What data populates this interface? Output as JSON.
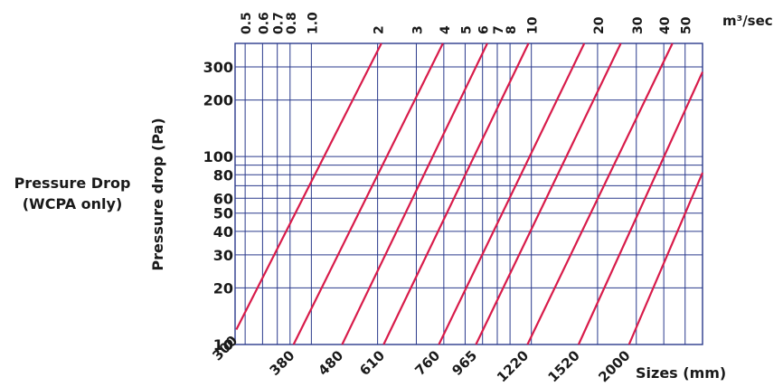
{
  "side_label": {
    "line1": "Pressure Drop",
    "line2": "(WCPA only)"
  },
  "chart_data": {
    "type": "line",
    "title": "",
    "ylabel": "Pressure drop (Pa)",
    "xlabel_top": "m³/sec",
    "xlabel_bottom": "Sizes (mm)",
    "x_scale": "log",
    "y_scale": "log",
    "xlim": [
      0.45,
      60
    ],
    "ylim": [
      10,
      400
    ],
    "grid": true,
    "colors": {
      "grid": "#2a3a8c",
      "series": "#d81b4a",
      "text": "#1a1a1a"
    },
    "top_ticks": [
      {
        "label": "0.5",
        "value": 0.5
      },
      {
        "label": "0.6",
        "value": 0.6
      },
      {
        "label": "0.7",
        "value": 0.7
      },
      {
        "label": "0.8",
        "value": 0.8
      },
      {
        "label": "1.0",
        "value": 1.0
      },
      {
        "label": "2",
        "value": 2
      },
      {
        "label": "3",
        "value": 3
      },
      {
        "label": "4",
        "value": 4
      },
      {
        "label": "5",
        "value": 5
      },
      {
        "label": "6",
        "value": 6
      },
      {
        "label": "7",
        "value": 7
      },
      {
        "label": "8",
        "value": 8
      },
      {
        "label": "10",
        "value": 10
      },
      {
        "label": "20",
        "value": 20
      },
      {
        "label": "30",
        "value": 30
      },
      {
        "label": "40",
        "value": 40
      },
      {
        "label": "50",
        "value": 50
      }
    ],
    "y_ticks": [
      {
        "label": "300",
        "value": 300
      },
      {
        "label": "200",
        "value": 200
      },
      {
        "label": "100",
        "value": 100
      },
      {
        "label": "80",
        "value": 80
      },
      {
        "label": "60",
        "value": 60
      },
      {
        "label": "50",
        "value": 50
      },
      {
        "label": "40",
        "value": 40
      },
      {
        "label": "30",
        "value": 30
      },
      {
        "label": "20",
        "value": 20
      },
      {
        "label": "10",
        "value": 10
      }
    ],
    "y_grid_extra": [
      90,
      70
    ],
    "series": [
      {
        "size_label": "300",
        "x": [
          0.456,
          2.08
        ],
        "y": [
          12,
          400
        ]
      },
      {
        "size_label": "380",
        "x": [
          0.83,
          3.96
        ],
        "y": [
          10,
          400
        ]
      },
      {
        "size_label": "480",
        "x": [
          1.38,
          6.3
        ],
        "y": [
          10,
          400
        ]
      },
      {
        "size_label": "610",
        "x": [
          2.13,
          9.7
        ],
        "y": [
          10,
          400
        ]
      },
      {
        "size_label": "760",
        "x": [
          3.8,
          17.4
        ],
        "y": [
          10,
          400
        ]
      },
      {
        "size_label": "965",
        "x": [
          5.6,
          25.5
        ],
        "y": [
          10,
          400
        ]
      },
      {
        "size_label": "1220",
        "x": [
          9.6,
          43.8
        ],
        "y": [
          10,
          400
        ]
      },
      {
        "size_label": "1520",
        "x": [
          16.4,
          60
        ],
        "y": [
          10,
          282
        ]
      },
      {
        "size_label": "2000",
        "x": [
          27.8,
          60
        ],
        "y": [
          10,
          82
        ]
      }
    ]
  }
}
